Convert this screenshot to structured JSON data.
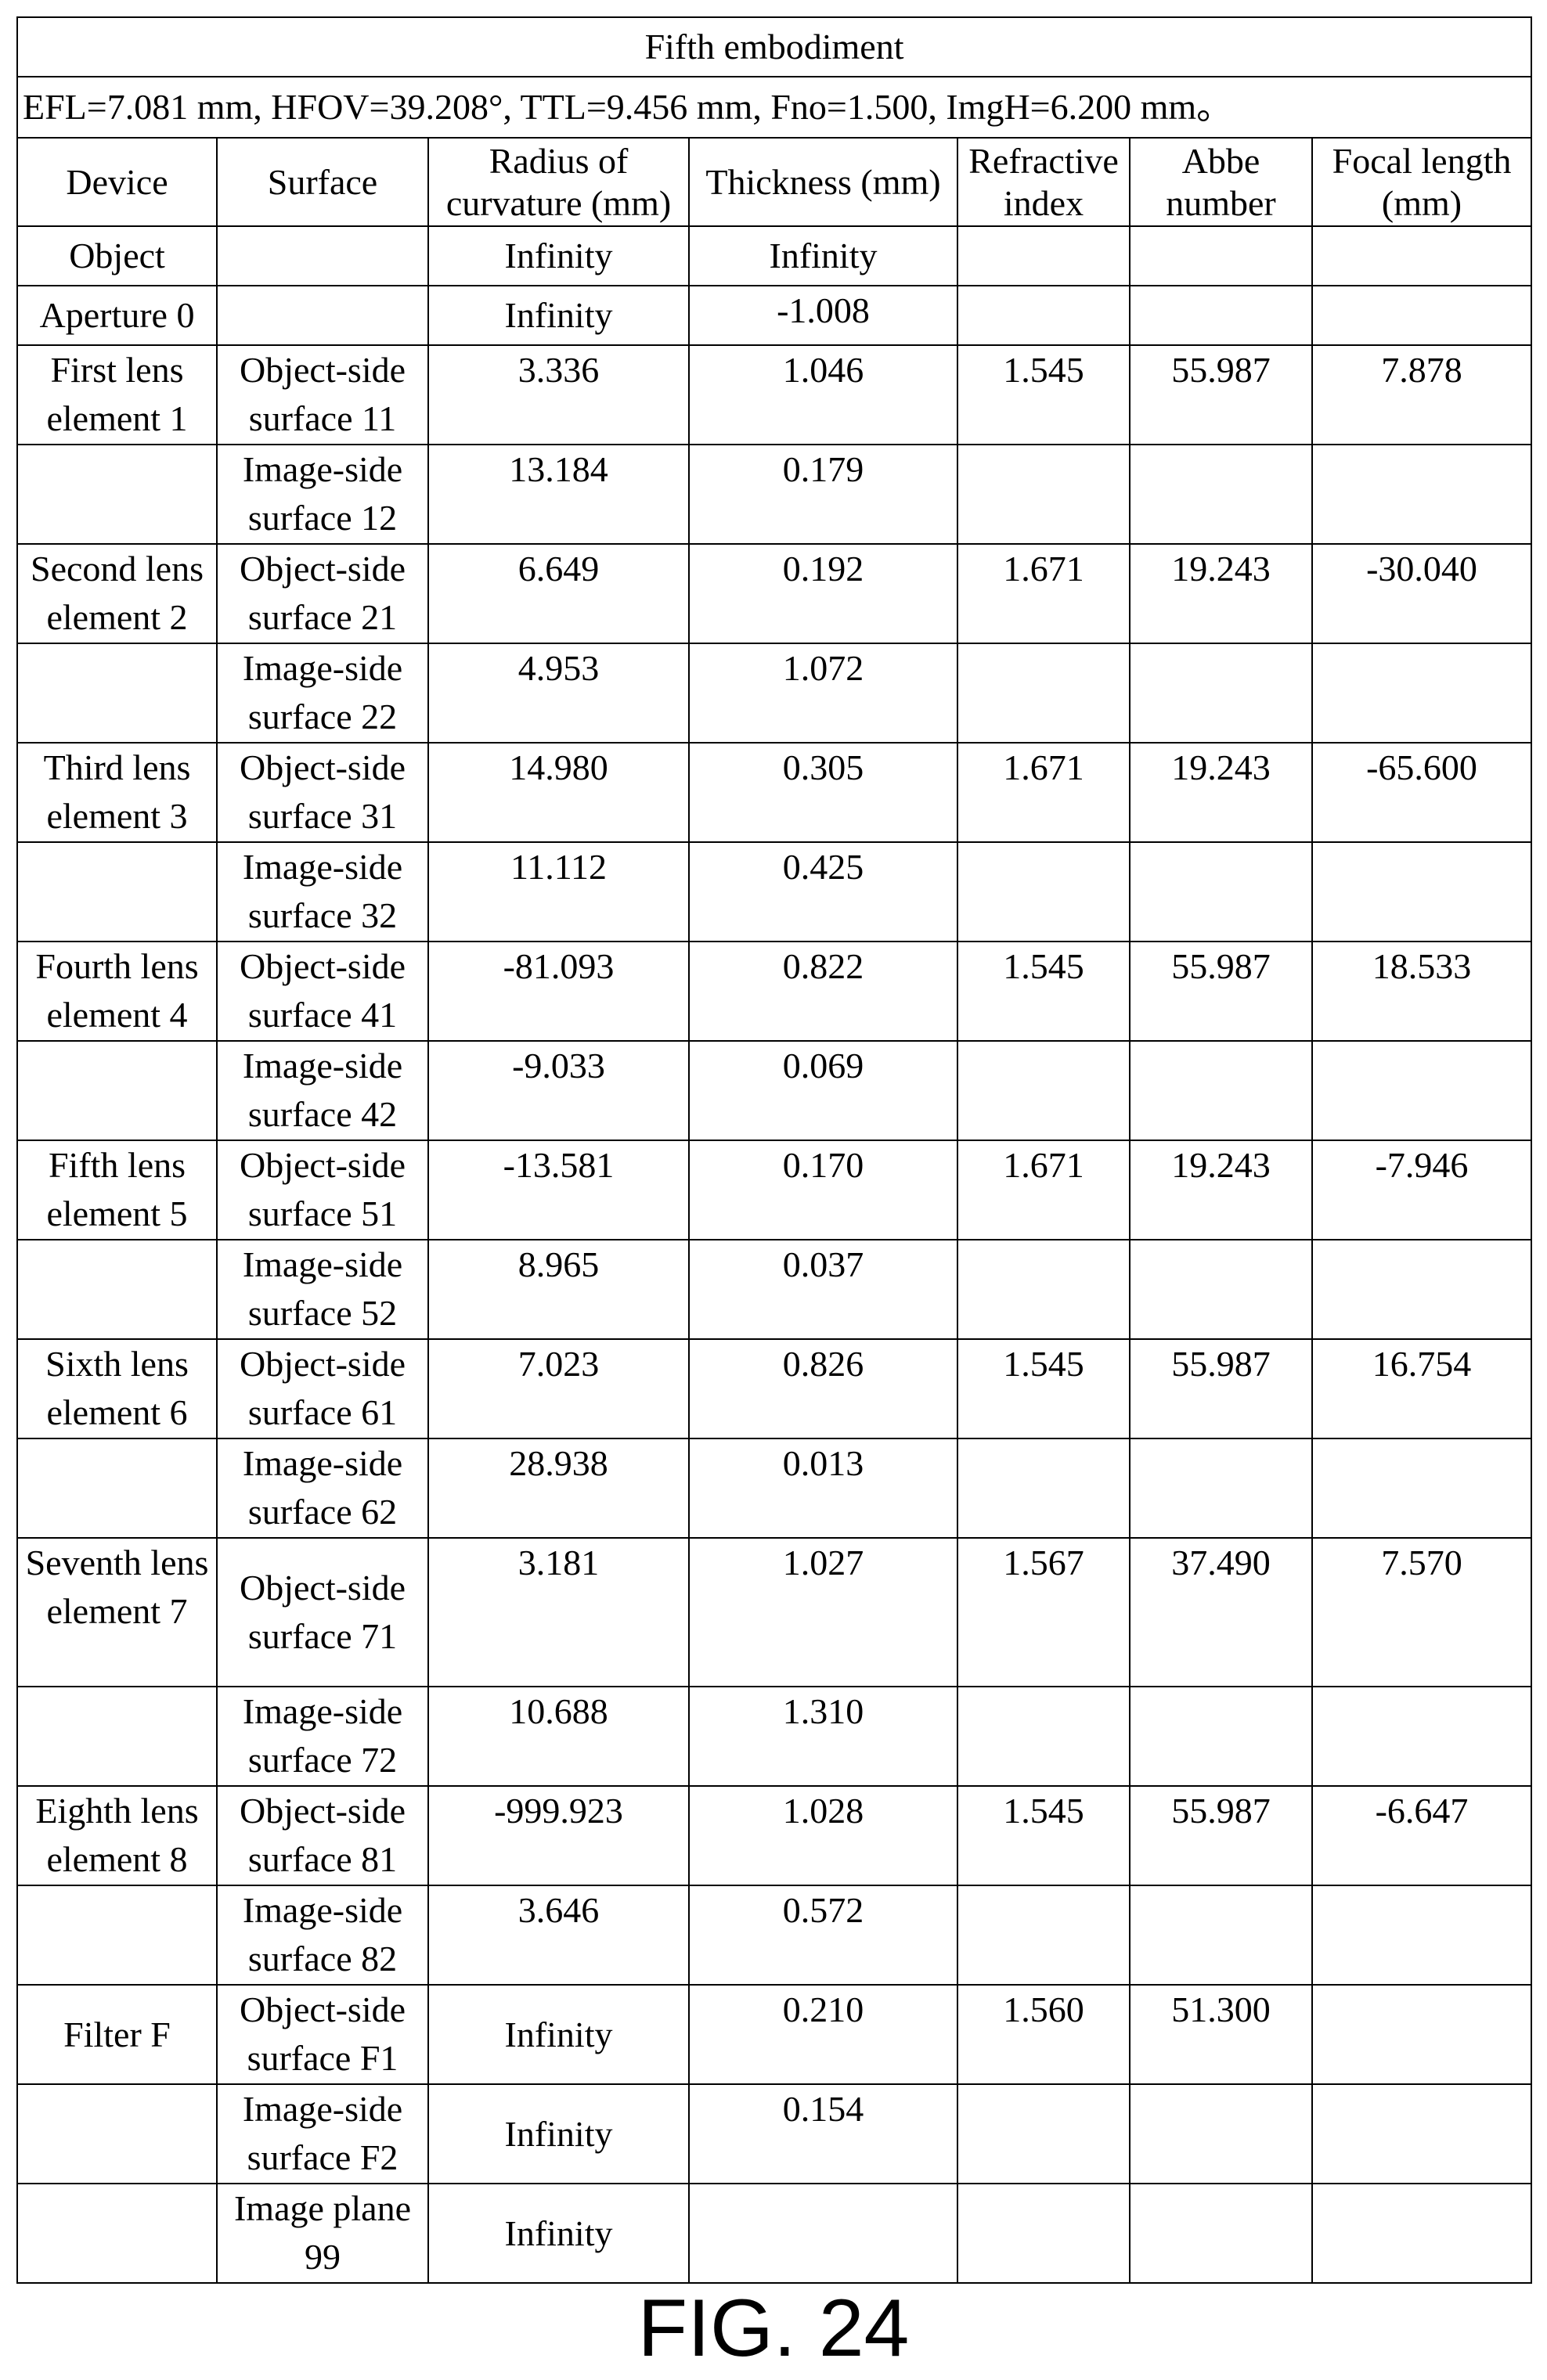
{
  "table": {
    "title": "Fifth embodiment",
    "parameters": "EFL=7.081 mm, HFOV=39.208°, TTL=9.456 mm, Fno=1.500, ImgH=6.200 mm。",
    "headers": [
      "Device",
      "Surface",
      "Radius of curvature (mm)",
      "Thickness (mm)",
      "Refractive index",
      "Abbe number",
      "Focal length (mm)"
    ],
    "rows": [
      [
        "Object",
        "",
        "Infinity",
        "Infinity",
        "",
        "",
        ""
      ],
      [
        "Aperture 0",
        "",
        "Infinity",
        "-1.008",
        "",
        "",
        ""
      ],
      [
        "First lens element 1",
        "Object-side surface 11",
        "3.336",
        "1.046",
        "1.545",
        "55.987",
        "7.878"
      ],
      [
        "",
        "Image-side surface 12",
        "13.184",
        "0.179",
        "",
        "",
        ""
      ],
      [
        "Second lens element 2",
        "Object-side surface 21",
        "6.649",
        "0.192",
        "1.671",
        "19.243",
        "-30.040"
      ],
      [
        "",
        "Image-side surface 22",
        "4.953",
        "1.072",
        "",
        "",
        ""
      ],
      [
        "Third lens element 3",
        "Object-side surface 31",
        "14.980",
        "0.305",
        "1.671",
        "19.243",
        "-65.600"
      ],
      [
        "",
        "Image-side surface 32",
        "11.112",
        "0.425",
        "",
        "",
        ""
      ],
      [
        "Fourth lens element 4",
        "Object-side surface 41",
        "-81.093",
        "0.822",
        "1.545",
        "55.987",
        "18.533"
      ],
      [
        "",
        "Image-side surface 42",
        "-9.033",
        "0.069",
        "",
        "",
        ""
      ],
      [
        "Fifth lens element 5",
        "Object-side surface 51",
        "-13.581",
        "0.170",
        "1.671",
        "19.243",
        "-7.946"
      ],
      [
        "",
        "Image-side surface 52",
        "8.965",
        "0.037",
        "",
        "",
        ""
      ],
      [
        "Sixth lens element 6",
        "Object-side surface 61",
        "7.023",
        "0.826",
        "1.545",
        "55.987",
        "16.754"
      ],
      [
        "",
        "Image-side surface 62",
        "28.938",
        "0.013",
        "",
        "",
        ""
      ],
      [
        "Seventh lens element 7",
        "Object-side surface 71",
        "3.181",
        "1.027",
        "1.567",
        "37.490",
        "7.570"
      ],
      [
        "",
        "Image-side surface 72",
        "10.688",
        "1.310",
        "",
        "",
        ""
      ],
      [
        "Eighth lens element 8",
        "Object-side surface 81",
        "-999.923",
        "1.028",
        "1.545",
        "55.987",
        "-6.647"
      ],
      [
        "",
        "Image-side surface 82",
        "3.646",
        "0.572",
        "",
        "",
        ""
      ],
      [
        "Filter F",
        "Object-side surface F1",
        "Infinity",
        "0.210",
        "1.560",
        "51.300",
        ""
      ],
      [
        "",
        "Image-side surface F2",
        "Infinity",
        "0.154",
        "",
        "",
        ""
      ],
      [
        "",
        "Image plane 99",
        "Infinity",
        "",
        "",
        "",
        ""
      ]
    ]
  },
  "figure_label": "FIG. 24"
}
